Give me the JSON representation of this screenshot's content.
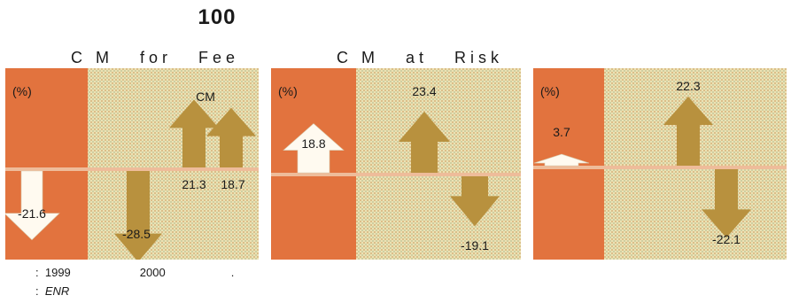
{
  "page_title": "100",
  "colors": {
    "panel_bg": "#ece2b4",
    "prior_year_band": "#e2733e",
    "arrow_brown": "#b8913e",
    "arrow_white": "#fffaf0",
    "baseline": "#eebc9a"
  },
  "chart_data": [
    {
      "type": "bar",
      "title": "C M   for   Fee",
      "unit_label": "(%)",
      "series_label": "CM",
      "categories": [
        "1999",
        "2000",
        "2000",
        "2000"
      ],
      "values": [
        -21.6,
        -28.5,
        21.3,
        18.7
      ],
      "value_labels": [
        "-21.6",
        "-28.5",
        "21.3",
        "18.7"
      ]
    },
    {
      "type": "bar",
      "title": "C M   at   Risk",
      "unit_label": "(%)",
      "categories": [
        "1999",
        "2000",
        "2000"
      ],
      "values": [
        18.8,
        23.4,
        -19.1
      ],
      "value_labels": [
        "18.8",
        "23.4",
        "-19.1"
      ]
    },
    {
      "type": "bar",
      "title": "",
      "unit_label": "(%)",
      "categories": [
        "1999",
        "2000",
        "2000"
      ],
      "values": [
        3.7,
        22.3,
        -22.1
      ],
      "value_labels": [
        "3.7",
        "22.3",
        "-22.1"
      ]
    }
  ],
  "footnotes": {
    "note_colon": ":",
    "note_year1": "1999",
    "note_year2": "2000",
    "note_dot": ".",
    "source_colon": ":",
    "source": "ENR"
  }
}
